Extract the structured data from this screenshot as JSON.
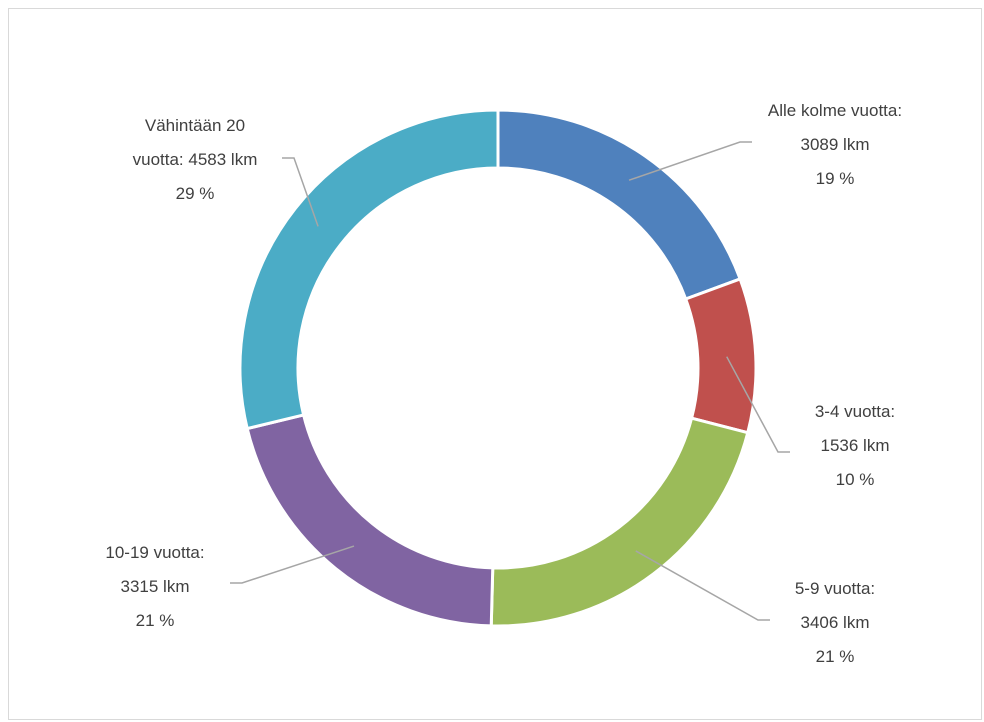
{
  "chart_data": {
    "type": "donut",
    "categories": [
      "Alle kolme vuotta:",
      "3-4 vuotta:",
      "5-9 vuotta:",
      "10-19 vuotta:",
      "Vähintään 20 vuotta:"
    ],
    "values": [
      3089,
      1536,
      3406,
      3315,
      4583
    ],
    "value_labels": [
      "3089 lkm",
      "1536 lkm",
      "3406 lkm",
      "3315 lkm",
      "4583 lkm"
    ],
    "percent_labels": [
      "19 %",
      "10 %",
      "21 %",
      "21 %",
      "29 %"
    ],
    "colors": [
      "#4f81bd",
      "#c0504d",
      "#9bbb59",
      "#8064a2",
      "#4bacc6"
    ]
  }
}
